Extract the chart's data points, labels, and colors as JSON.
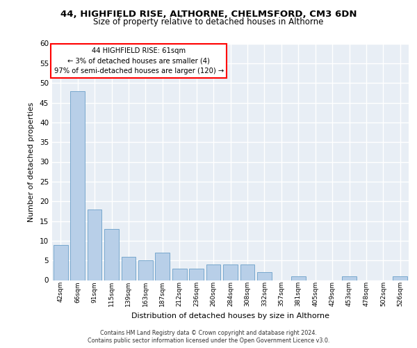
{
  "title1": "44, HIGHFIELD RISE, ALTHORNE, CHELMSFORD, CM3 6DN",
  "title2": "Size of property relative to detached houses in Althorne",
  "xlabel": "Distribution of detached houses by size in Althorne",
  "ylabel": "Number of detached properties",
  "bar_labels": [
    "42sqm",
    "66sqm",
    "91sqm",
    "115sqm",
    "139sqm",
    "163sqm",
    "187sqm",
    "212sqm",
    "236sqm",
    "260sqm",
    "284sqm",
    "308sqm",
    "332sqm",
    "357sqm",
    "381sqm",
    "405sqm",
    "429sqm",
    "453sqm",
    "478sqm",
    "502sqm",
    "526sqm"
  ],
  "bar_values": [
    9,
    48,
    18,
    13,
    6,
    5,
    7,
    3,
    3,
    4,
    4,
    4,
    2,
    0,
    1,
    0,
    0,
    1,
    0,
    0,
    1
  ],
  "bar_color": "#b8cfe8",
  "bar_edge_color": "#6a9fc8",
  "annotation_text": "44 HIGHFIELD RISE: 61sqm\n← 3% of detached houses are smaller (4)\n97% of semi-detached houses are larger (120) →",
  "annotation_box_color": "white",
  "annotation_box_edge": "red",
  "ylim": [
    0,
    60
  ],
  "yticks": [
    0,
    5,
    10,
    15,
    20,
    25,
    30,
    35,
    40,
    45,
    50,
    55,
    60
  ],
  "bg_color": "#e8eef5",
  "grid_color": "white",
  "footer_line1": "Contains HM Land Registry data © Crown copyright and database right 2024.",
  "footer_line2": "Contains public sector information licensed under the Open Government Licence v3.0."
}
